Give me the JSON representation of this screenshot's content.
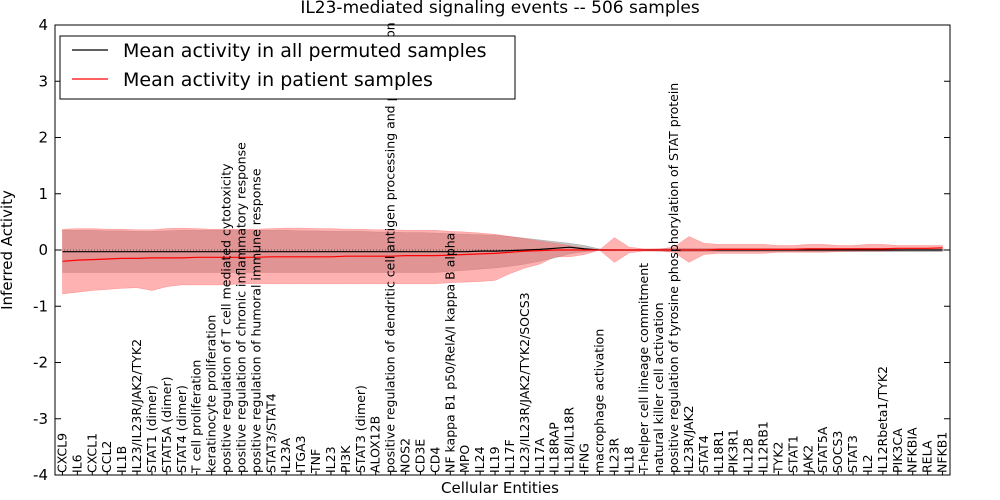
{
  "chart_data": {
    "type": "line",
    "title": "IL23-mediated signaling events -- 506 samples",
    "xlabel": "Cellular Entities",
    "ylabel": "Inferred Activity",
    "ylim": [
      -4,
      4
    ],
    "yticks": [
      -4,
      -3,
      -2,
      -1,
      0,
      1,
      2,
      3,
      4
    ],
    "legend_position": "top-left",
    "categories": [
      "CXCL9",
      "IL6",
      "CXCL1",
      "CCL2",
      "IL1B",
      "IL23/IL23R/JAK2/TYK2",
      "STAT1 (dimer)",
      "STAT5A (dimer)",
      "STAT4 (dimer)",
      "T cell proliferation",
      "keratinocyte proliferation",
      "positive regulation of T cell mediated cytotoxicity",
      "positive regulation of chronic inflammatory response",
      "positive regulation of humoral immune response",
      "STAT3/STAT4",
      "IL23A",
      "ITGA3",
      "TNF",
      "IL23",
      "PI3K",
      "STAT3 (dimer)",
      "ALOX12B",
      "positive regulation of dendritic cell antigen processing and presentation",
      "NOS2",
      "CD3E",
      "CD4",
      "NF kappa B1 p50/RelA/I kappa B alpha",
      "MPO",
      "IL24",
      "IL19",
      "IL17F",
      "IL23/IL23R/JAK2/TYK2/SOCS3",
      "IL17A",
      "IL18RAP",
      "IL18/IL18R",
      "IFNG",
      "macrophage activation",
      "IL23R",
      "IL18",
      "T-helper cell lineage commitment",
      "natural killer cell activation",
      "positive regulation of tyrosine phosphorylation of STAT protein",
      "IL23R/JAK2",
      "STAT4",
      "IL18R1",
      "PIK3R1",
      "IL12B",
      "IL12RB1",
      "TYK2",
      "STAT1",
      "JAK2",
      "STAT5A",
      "SOCS3",
      "STAT3",
      "IL2",
      "IL12Rbeta1/TYK2",
      "PIK3CA",
      "NFKBIA",
      "RELA",
      "NFKB1"
    ],
    "series": [
      {
        "name": "Mean activity in all permuted samples",
        "color": "#000000",
        "values": [
          -0.03,
          -0.03,
          -0.03,
          -0.03,
          -0.03,
          -0.03,
          -0.03,
          -0.03,
          -0.03,
          -0.03,
          -0.03,
          -0.03,
          -0.03,
          -0.03,
          -0.03,
          -0.03,
          -0.03,
          -0.03,
          -0.03,
          -0.03,
          -0.03,
          -0.03,
          -0.03,
          -0.03,
          -0.03,
          -0.03,
          -0.03,
          -0.03,
          -0.02,
          -0.02,
          -0.01,
          0.0,
          0.01,
          0.03,
          0.05,
          0.02,
          0.0,
          0.0,
          0.0,
          0.0,
          0.0,
          0.0,
          0.0,
          0.0,
          0.0,
          0.0,
          0.0,
          0.0,
          0.0,
          0.0,
          0.0,
          0.0,
          0.0,
          0.0,
          0.0,
          0.0,
          0.0,
          0.0,
          0.0,
          0.0
        ]
      },
      {
        "name": "Mean activity in patient samples",
        "color": "#ff0000",
        "values": [
          -0.2,
          -0.18,
          -0.17,
          -0.16,
          -0.15,
          -0.15,
          -0.14,
          -0.14,
          -0.14,
          -0.13,
          -0.13,
          -0.13,
          -0.13,
          -0.13,
          -0.12,
          -0.12,
          -0.12,
          -0.12,
          -0.12,
          -0.11,
          -0.11,
          -0.11,
          -0.11,
          -0.1,
          -0.1,
          -0.1,
          -0.09,
          -0.08,
          -0.07,
          -0.06,
          -0.04,
          -0.02,
          -0.01,
          0.0,
          0.0,
          0.0,
          0.0,
          0.0,
          0.0,
          0.0,
          0.0,
          0.0,
          0.0,
          0.0,
          0.01,
          0.01,
          0.01,
          0.01,
          0.01,
          0.01,
          0.02,
          0.02,
          0.02,
          0.02,
          0.02,
          0.02,
          0.03,
          0.03,
          0.03,
          0.04
        ]
      }
    ],
    "bands": [
      {
        "name": "permuted spread",
        "color": "#888888",
        "upper": [
          0.35,
          0.35,
          0.35,
          0.34,
          0.34,
          0.33,
          0.33,
          0.34,
          0.35,
          0.35,
          0.35,
          0.35,
          0.35,
          0.35,
          0.35,
          0.35,
          0.34,
          0.34,
          0.33,
          0.33,
          0.33,
          0.32,
          0.32,
          0.31,
          0.31,
          0.3,
          0.29,
          0.28,
          0.27,
          0.26,
          0.24,
          0.21,
          0.18,
          0.15,
          0.12,
          0.08,
          0.02,
          0.0,
          0.0,
          0.01,
          0.02,
          0.03,
          0.03,
          0.03,
          0.03,
          0.03,
          0.03,
          0.03,
          0.03,
          0.03,
          0.03,
          0.03,
          0.03,
          0.03,
          0.03,
          0.03,
          0.03,
          0.03,
          0.03,
          0.03
        ],
        "lower": [
          -0.4,
          -0.4,
          -0.4,
          -0.4,
          -0.4,
          -0.4,
          -0.4,
          -0.4,
          -0.4,
          -0.4,
          -0.4,
          -0.4,
          -0.4,
          -0.4,
          -0.4,
          -0.4,
          -0.4,
          -0.4,
          -0.4,
          -0.4,
          -0.4,
          -0.4,
          -0.4,
          -0.4,
          -0.4,
          -0.4,
          -0.38,
          -0.36,
          -0.34,
          -0.32,
          -0.29,
          -0.25,
          -0.2,
          -0.14,
          -0.07,
          -0.03,
          -0.01,
          -0.01,
          0.0,
          -0.01,
          -0.02,
          -0.03,
          -0.03,
          -0.03,
          -0.03,
          -0.03,
          -0.03,
          -0.03,
          -0.03,
          -0.03,
          -0.03,
          -0.03,
          -0.03,
          -0.03,
          -0.03,
          -0.03,
          -0.03,
          -0.03,
          -0.03,
          -0.03
        ]
      },
      {
        "name": "patient spread",
        "color": "#ff6666",
        "upper": [
          0.37,
          0.38,
          0.38,
          0.37,
          0.37,
          0.36,
          0.36,
          0.38,
          0.39,
          0.38,
          0.37,
          0.37,
          0.37,
          0.37,
          0.38,
          0.39,
          0.39,
          0.38,
          0.38,
          0.37,
          0.37,
          0.36,
          0.36,
          0.35,
          0.35,
          0.35,
          0.33,
          0.32,
          0.3,
          0.28,
          0.24,
          0.2,
          0.16,
          0.12,
          0.08,
          0.03,
          0.0,
          0.22,
          0.05,
          0.02,
          0.02,
          0.05,
          0.24,
          0.12,
          0.1,
          0.1,
          0.1,
          0.1,
          0.08,
          0.08,
          0.1,
          0.1,
          0.08,
          0.08,
          0.1,
          0.1,
          0.08,
          0.08,
          0.08,
          0.08
        ],
        "lower": [
          -0.78,
          -0.75,
          -0.72,
          -0.7,
          -0.68,
          -0.67,
          -0.72,
          -0.65,
          -0.62,
          -0.62,
          -0.62,
          -0.62,
          -0.6,
          -0.6,
          -0.6,
          -0.6,
          -0.6,
          -0.6,
          -0.6,
          -0.6,
          -0.6,
          -0.6,
          -0.6,
          -0.6,
          -0.6,
          -0.6,
          -0.58,
          -0.57,
          -0.56,
          -0.54,
          -0.42,
          -0.32,
          -0.25,
          -0.12,
          -0.12,
          -0.08,
          0.0,
          -0.22,
          -0.05,
          -0.02,
          -0.02,
          -0.04,
          -0.22,
          -0.08,
          -0.06,
          -0.06,
          -0.06,
          -0.06,
          -0.04,
          -0.04,
          -0.04,
          -0.04,
          -0.03,
          -0.02,
          -0.02,
          -0.02,
          -0.01,
          0.0,
          0.0,
          0.0
        ]
      }
    ],
    "baseline": 0
  }
}
